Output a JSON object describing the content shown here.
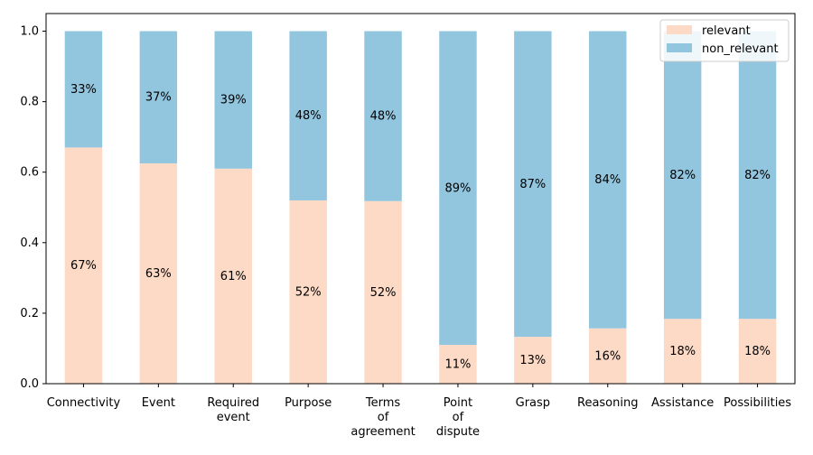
{
  "chart_data": {
    "type": "bar",
    "stacked": true,
    "categories": [
      "Connectivity",
      "Event",
      "Required\nevent",
      "Purpose",
      "Terms\nof\nagreement",
      "Point\nof\ndispute",
      "Grasp",
      "Reasoning",
      "Assistance",
      "Possibilities"
    ],
    "series": [
      {
        "name": "relevant",
        "color": "#fddac6",
        "values": [
          0.67,
          0.625,
          0.61,
          0.52,
          0.518,
          0.11,
          0.133,
          0.157,
          0.184,
          0.184
        ],
        "labels": [
          "67%",
          "63%",
          "61%",
          "52%",
          "52%",
          "11%",
          "13%",
          "16%",
          "18%",
          "18%"
        ]
      },
      {
        "name": "non_relevant",
        "color": "#92c5de",
        "values": [
          0.33,
          0.375,
          0.39,
          0.48,
          0.482,
          0.89,
          0.867,
          0.843,
          0.816,
          0.816
        ],
        "labels": [
          "33%",
          "37%",
          "39%",
          "48%",
          "48%",
          "89%",
          "87%",
          "84%",
          "82%",
          "82%"
        ]
      }
    ],
    "ylim": [
      0,
      1.05
    ],
    "yticks": [
      "0.0",
      "0.2",
      "0.4",
      "0.6",
      "0.8",
      "1.0"
    ],
    "legend_position": "top-right",
    "grid": false
  }
}
